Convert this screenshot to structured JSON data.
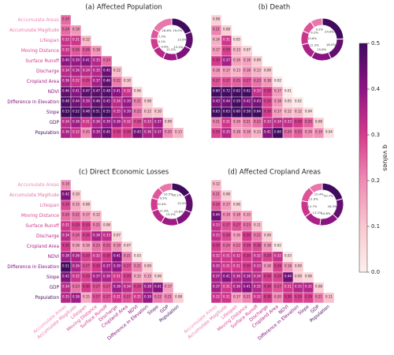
{
  "colorbar": {
    "label": "q values",
    "lim": [
      0,
      0.5
    ],
    "ticks": [
      {
        "value": 0,
        "label": "0.0"
      },
      0.1,
      0.2,
      0.3,
      0.4,
      0.5
    ],
    "colormap": [
      "#fdf0ee",
      "#f9c7cf",
      "#f08bb5",
      "#d63a8c",
      "#8f1484",
      "#400a5e"
    ]
  },
  "chart_data": [
    {
      "type": "heatmap",
      "title": "(a) Affected Population",
      "row_labels": [
        "Accumulate Areas",
        "Accumulate Magitude",
        "Lifespan",
        "Moving Distance",
        "Surface Runoff",
        "Discharge",
        "Cropland Area",
        "NDVI",
        "Difference in Elevation",
        "Slope",
        "GDP",
        "Population"
      ],
      "values": [
        [
          0.24
        ],
        [
          0.24,
          0.18
        ],
        [
          0.32,
          0.31,
          0.12
        ],
        [
          0.32,
          0.26,
          0.26,
          0.18
        ],
        [
          0.4,
          0.39,
          0.41,
          0.35,
          0.24
        ],
        [
          0.34,
          0.36,
          0.34,
          0.35,
          0.45,
          0.12
        ],
        [
          0.36,
          0.32,
          0.29,
          0.37,
          0.46,
          0.22,
          0.1
        ],
        [
          0.46,
          0.41,
          0.47,
          0.47,
          0.48,
          0.41,
          0.32,
          0.06
        ],
        [
          0.48,
          0.44,
          0.39,
          0.46,
          0.45,
          0.34,
          0.39,
          0.21,
          0.08
        ],
        [
          0.53,
          0.52,
          0.48,
          0.51,
          0.55,
          0.35,
          0.39,
          0.22,
          0.12,
          0.1
        ],
        [
          0.34,
          0.38,
          0.31,
          0.36,
          0.39,
          0.38,
          0.32,
          0.28,
          0.33,
          0.37,
          0.09
        ],
        [
          0.36,
          0.32,
          0.2,
          0.39,
          0.45,
          0.3,
          0.3,
          0.43,
          0.36,
          0.37,
          0.2,
          0.13
        ]
      ],
      "value_labels": [
        [
          "0.24"
        ],
        [
          "0.24",
          "0.18"
        ],
        [
          "0.32",
          "0.31",
          "0.12"
        ],
        [
          "0.32",
          "0.26",
          "0.26",
          "0.18"
        ],
        [
          "0.40",
          "0.39",
          "0.41",
          "0.35",
          "0.24"
        ],
        [
          "0.34",
          "0.36",
          "0.34",
          "0.35",
          "0.45",
          "0.12"
        ],
        [
          "0.36",
          "0.32",
          "0.29",
          "0.37",
          "0.46",
          "0.22",
          "0.10"
        ],
        [
          "0.46",
          "0.41",
          "0.47",
          "0.47",
          "0.48",
          "0.41",
          "0.32",
          "0.06"
        ],
        [
          "0.48",
          "0.44",
          "0.39",
          "0.46",
          "0.45",
          "0.34",
          "0.39",
          "0.21",
          "0.08"
        ],
        [
          "0.53",
          "0.52",
          "0.48",
          "0.51",
          "0.55",
          "0.35",
          "0.39",
          "0.22",
          "0.12",
          "0.10"
        ],
        [
          "0.34",
          "0.38",
          "0.31",
          "0.36",
          "0.39",
          "0.38",
          "0.32",
          "0.28",
          "0.33",
          "0.37",
          "0.09"
        ],
        [
          "0.36",
          "0.32",
          "0.20",
          "0.39",
          "0.45",
          "0.30",
          "0.30",
          "0.43",
          "0.36",
          "0.37",
          "0.20",
          "0.13"
        ]
      ],
      "donut": {
        "values": [
          19.0,
          13.5,
          13.2,
          11.2,
          9.9,
          9.1,
          7.3,
          16.8
        ],
        "value_labels": [
          "19.0%",
          "13.5%",
          "13.2%",
          "11.2%",
          "9.9%",
          "9.1%",
          "7.3%",
          "16.8%"
        ]
      }
    },
    {
      "type": "heatmap",
      "title": "(b) Death",
      "values": [
        [
          0.08
        ],
        [
          0.21,
          0.08
        ],
        [
          0.14,
          0.31,
          0.05
        ],
        [
          0.17,
          0.29,
          0.13,
          0.07
        ],
        [
          0.3,
          0.37,
          0.16,
          0.16,
          0.09
        ],
        [
          0.18,
          0.17,
          0.13,
          0.18,
          0.13,
          0.09
        ],
        [
          0.27,
          0.27,
          0.25,
          0.27,
          0.23,
          0.18,
          0.02
        ],
        [
          0.6,
          0.72,
          0.62,
          0.62,
          0.33,
          0.3,
          0.17,
          0.01
        ],
        [
          0.43,
          0.44,
          0.59,
          0.42,
          0.43,
          0.29,
          0.18,
          0.05,
          0.02
        ],
        [
          0.63,
          0.63,
          0.6,
          0.58,
          0.64,
          0.3,
          0.17,
          0.12,
          0.12,
          0.04
        ],
        [
          0.21,
          0.31,
          0.19,
          0.21,
          0.23,
          0.33,
          0.34,
          0.33,
          0.3,
          0.25,
          0.08
        ],
        [
          0.29,
          0.35,
          0.18,
          0.18,
          0.13,
          0.41,
          0.6,
          0.24,
          0.25,
          0.19,
          0.19,
          0.04
        ]
      ],
      "value_labels": [
        [
          "0.08"
        ],
        [
          "0.21",
          "0.08"
        ],
        [
          "0.14",
          "0.31",
          "0.05"
        ],
        [
          "0.17",
          "0.29",
          "0.13",
          "0.07"
        ],
        [
          "0.30",
          "0.37",
          "0.16",
          "0.16",
          "0.09"
        ],
        [
          "0.18",
          "0.17",
          "0.13",
          "0.18",
          "0.13",
          "0.09"
        ],
        [
          "0.27",
          "0.27",
          "0.25",
          "0.27",
          "0.23",
          "0.18",
          "0.02"
        ],
        [
          "0.60",
          "0.72",
          "0.62",
          "0.62",
          "0.33",
          "0.30",
          "0.17",
          "0.01"
        ],
        [
          "0.43",
          "0.44",
          "0.59",
          "0.42",
          "0.43",
          "0.29",
          "0.18",
          "0.05",
          "0.02"
        ],
        [
          "0.63",
          "0.63",
          "0.60",
          "0.58",
          "0.64",
          "0.30",
          "0.17",
          "0.12",
          "0.12",
          "0.04"
        ],
        [
          "0.21",
          "0.31",
          "0.19",
          "0.21",
          "0.23",
          "0.33",
          "0.34",
          "0.33",
          "0.30",
          "0.25",
          "0.08"
        ],
        [
          "0.29",
          "0.35",
          "0.18",
          "0.18",
          "0.13",
          "0.41",
          "0.60",
          "0.24",
          "0.25",
          "0.19",
          "0.19",
          "0.04"
        ]
      ],
      "donut": {
        "values": [
          24.6,
          18.5,
          15.6,
          12.3,
          10.6,
          9.2,
          9.2
        ],
        "value_labels": [
          "24.6%",
          "18.5%",
          "15.6%",
          "12.3%",
          "10.6%",
          "9.2%",
          "9.2%"
        ]
      }
    },
    {
      "type": "heatmap",
      "title": "(c) Direct Economic Losses",
      "row_labels": [
        "Accumulate Areas",
        "Accumulate Magitude",
        "Lifespan",
        "Moving Distance",
        "Surface Runoff",
        "Discharge",
        "Cropland Area",
        "NDVI",
        "Difference in Elevation",
        "Slope",
        "GDP",
        "Population"
      ],
      "col_labels": [
        "Accumulate Areas",
        "Accumulate Magitude",
        "Lifespan",
        "Moving Distance",
        "Surface Runoff",
        "Discharge",
        "Cropland Area",
        "NDVI",
        "Difference in Elevation",
        "Slope",
        "GDP",
        "Population"
      ],
      "values": [
        [
          0.19
        ],
        [
          0.42,
          0.1
        ],
        [
          0.28,
          0.15,
          0.08
        ],
        [
          0.24,
          0.22,
          0.17,
          0.12
        ],
        [
          0.31,
          0.29,
          0.29,
          0.21,
          0.08
        ],
        [
          0.34,
          0.24,
          0.29,
          0.36,
          0.33,
          0.07
        ],
        [
          0.3,
          0.16,
          0.16,
          0.23,
          0.25,
          0.19,
          0.07
        ],
        [
          0.38,
          0.36,
          0.29,
          0.32,
          0.3,
          0.41,
          0.21,
          0.03
        ],
        [
          0.51,
          0.36,
          0.27,
          0.3,
          0.37,
          0.39,
          0.27,
          0.21,
          0.09
        ],
        [
          0.42,
          0.32,
          0.29,
          0.37,
          0.36,
          0.31,
          0.29,
          0.15,
          0.15,
          0.06
        ],
        [
          0.34,
          0.23,
          0.3,
          0.27,
          0.27,
          0.38,
          0.34,
          0.29,
          0.38,
          0.41,
          0.17
        ],
        [
          0.35,
          0.38,
          0.15,
          0.27,
          0.27,
          0.31,
          0.27,
          0.31,
          0.39,
          0.22,
          0.21,
          0.08
        ]
      ],
      "value_labels": [
        [
          "0.19"
        ],
        [
          "0.42",
          "0.10"
        ],
        [
          "0.28",
          "0.15",
          "0.08"
        ],
        [
          "0.24",
          "0.22",
          "0.17",
          "0.12"
        ],
        [
          "0.31",
          "0.29",
          "0.29",
          "0.21",
          "0.08"
        ],
        [
          "0.34",
          "0.24",
          "0.29",
          "0.36",
          "0.33",
          "0.07"
        ],
        [
          "0.30",
          "0.16",
          "0.16",
          "0.23",
          "0.25",
          "0.19",
          "0.07"
        ],
        [
          "0.38",
          "0.36",
          "0.29",
          "0.32",
          "0.30",
          "0.41",
          "0.21",
          "0.03"
        ],
        [
          "0.51",
          "0.36",
          "0.27",
          "0.30",
          "0.37",
          "0.39",
          "0.27",
          "0.21",
          "0.09"
        ],
        [
          "0.42",
          "0.32",
          "0.29",
          "0.37",
          "0.36",
          "0.31",
          "0.29",
          "0.15",
          "0.15",
          "0.06"
        ],
        [
          "0.34",
          "0.23",
          "0.30",
          "0.27",
          "0.27",
          "0.38",
          "0.34",
          "0.29",
          "0.38",
          "0.41",
          "0.17"
        ],
        [
          "0.35",
          "0.38",
          "0.15",
          "0.27",
          "0.27",
          "0.31",
          "0.27",
          "0.31",
          "0.39",
          "0.22",
          "0.21",
          "0.08"
        ]
      ],
      "donut": {
        "values": [
          16.1,
          15.2,
          13.8,
          13.2,
          11.3,
          10.4,
          9.5,
          10.5
        ],
        "value_labels": [
          "16.1%",
          "15.2%",
          "13.8%",
          "13.2%",
          "11.3%",
          "10.4%",
          "9.5%",
          "10.5%"
        ]
      }
    },
    {
      "type": "heatmap",
      "title": "(d) Affected Cropland Areas",
      "col_labels": [
        "Accumulate Areas",
        "Accumulate Magitude",
        "Lifespan",
        "Moving Distance",
        "Surface Runoff",
        "Discharge",
        "Cropland Area",
        "NDVI",
        "Difference in Elevation",
        "Slope",
        "GDP",
        "Population"
      ],
      "values": [
        [
          0.12
        ],
        [
          0.21,
          0.08
        ],
        [
          0.26,
          0.17,
          0.06
        ],
        [
          0.44,
          0.19,
          0.18,
          0.15
        ],
        [
          0.33,
          0.27,
          0.27,
          0.23,
          0.11
        ],
        [
          0.33,
          0.28,
          0.16,
          0.3,
          0.22,
          0.09
        ],
        [
          0.3,
          0.24,
          0.22,
          0.28,
          0.28,
          0.18,
          0.02
        ],
        [
          0.32,
          0.31,
          0.32,
          0.3,
          0.32,
          0.29,
          0.32,
          0.03
        ],
        [
          0.35,
          0.31,
          0.31,
          0.3,
          0.33,
          0.18,
          0.29,
          0.18,
          0.09
        ],
        [
          0.37,
          0.41,
          0.36,
          0.38,
          0.34,
          0.3,
          0.29,
          0.44,
          0.09,
          0.06
        ],
        [
          0.37,
          0.31,
          0.36,
          0.41,
          0.35,
          0.3,
          0.27,
          0.31,
          0.35,
          0.35,
          0.08
        ],
        [
          0.32,
          0.31,
          0.17,
          0.21,
          0.32,
          0.3,
          0.2,
          0.3,
          0.29,
          0.29,
          0.21,
          0.11
        ]
      ],
      "value_labels": [
        [
          "0.12"
        ],
        [
          "0.21",
          "0.08"
        ],
        [
          "0.26",
          "0.17",
          "0.06"
        ],
        [
          "0.44",
          "0.19",
          "0.18",
          "0.15"
        ],
        [
          "0.33",
          "0.27",
          "0.27",
          "0.23",
          "0.11"
        ],
        [
          "0.33",
          "0.28",
          "0.16",
          "0.30",
          "0.22",
          "0.09"
        ],
        [
          "0.30",
          "0.24",
          "0.22",
          "0.28",
          "0.28",
          "0.18",
          "0.02"
        ],
        [
          "0.32",
          "0.31",
          "0.32",
          "0.30",
          "0.32",
          "0.29",
          "0.32",
          "0.03"
        ],
        [
          "0.35",
          "0.31",
          "0.31",
          "0.30",
          "0.33",
          "0.18",
          "0.29",
          "0.18",
          "0.09"
        ],
        [
          "0.37",
          "0.41",
          "0.36",
          "0.38",
          "0.34",
          "0.30",
          "0.29",
          "0.44",
          "0.09",
          "0.06"
        ],
        [
          "0.37",
          "0.31",
          "0.36",
          "0.41",
          "0.35",
          "0.30",
          "0.27",
          "0.31",
          "0.35",
          "0.35",
          "0.08"
        ],
        [
          "0.32",
          "0.31",
          "0.17",
          "0.21",
          "0.32",
          "0.30",
          "0.20",
          "0.30",
          "0.29",
          "0.29",
          "0.21",
          "0.11"
        ]
      ],
      "donut": {
        "values": [
          20.7,
          16.3,
          14.8,
          13.2,
          12.7,
          11.9,
          10.4
        ],
        "value_labels": [
          "20.7%",
          "16.3%",
          "14.8%",
          "13.2%",
          "12.7%",
          "11.9%",
          "10.4%"
        ]
      }
    }
  ]
}
